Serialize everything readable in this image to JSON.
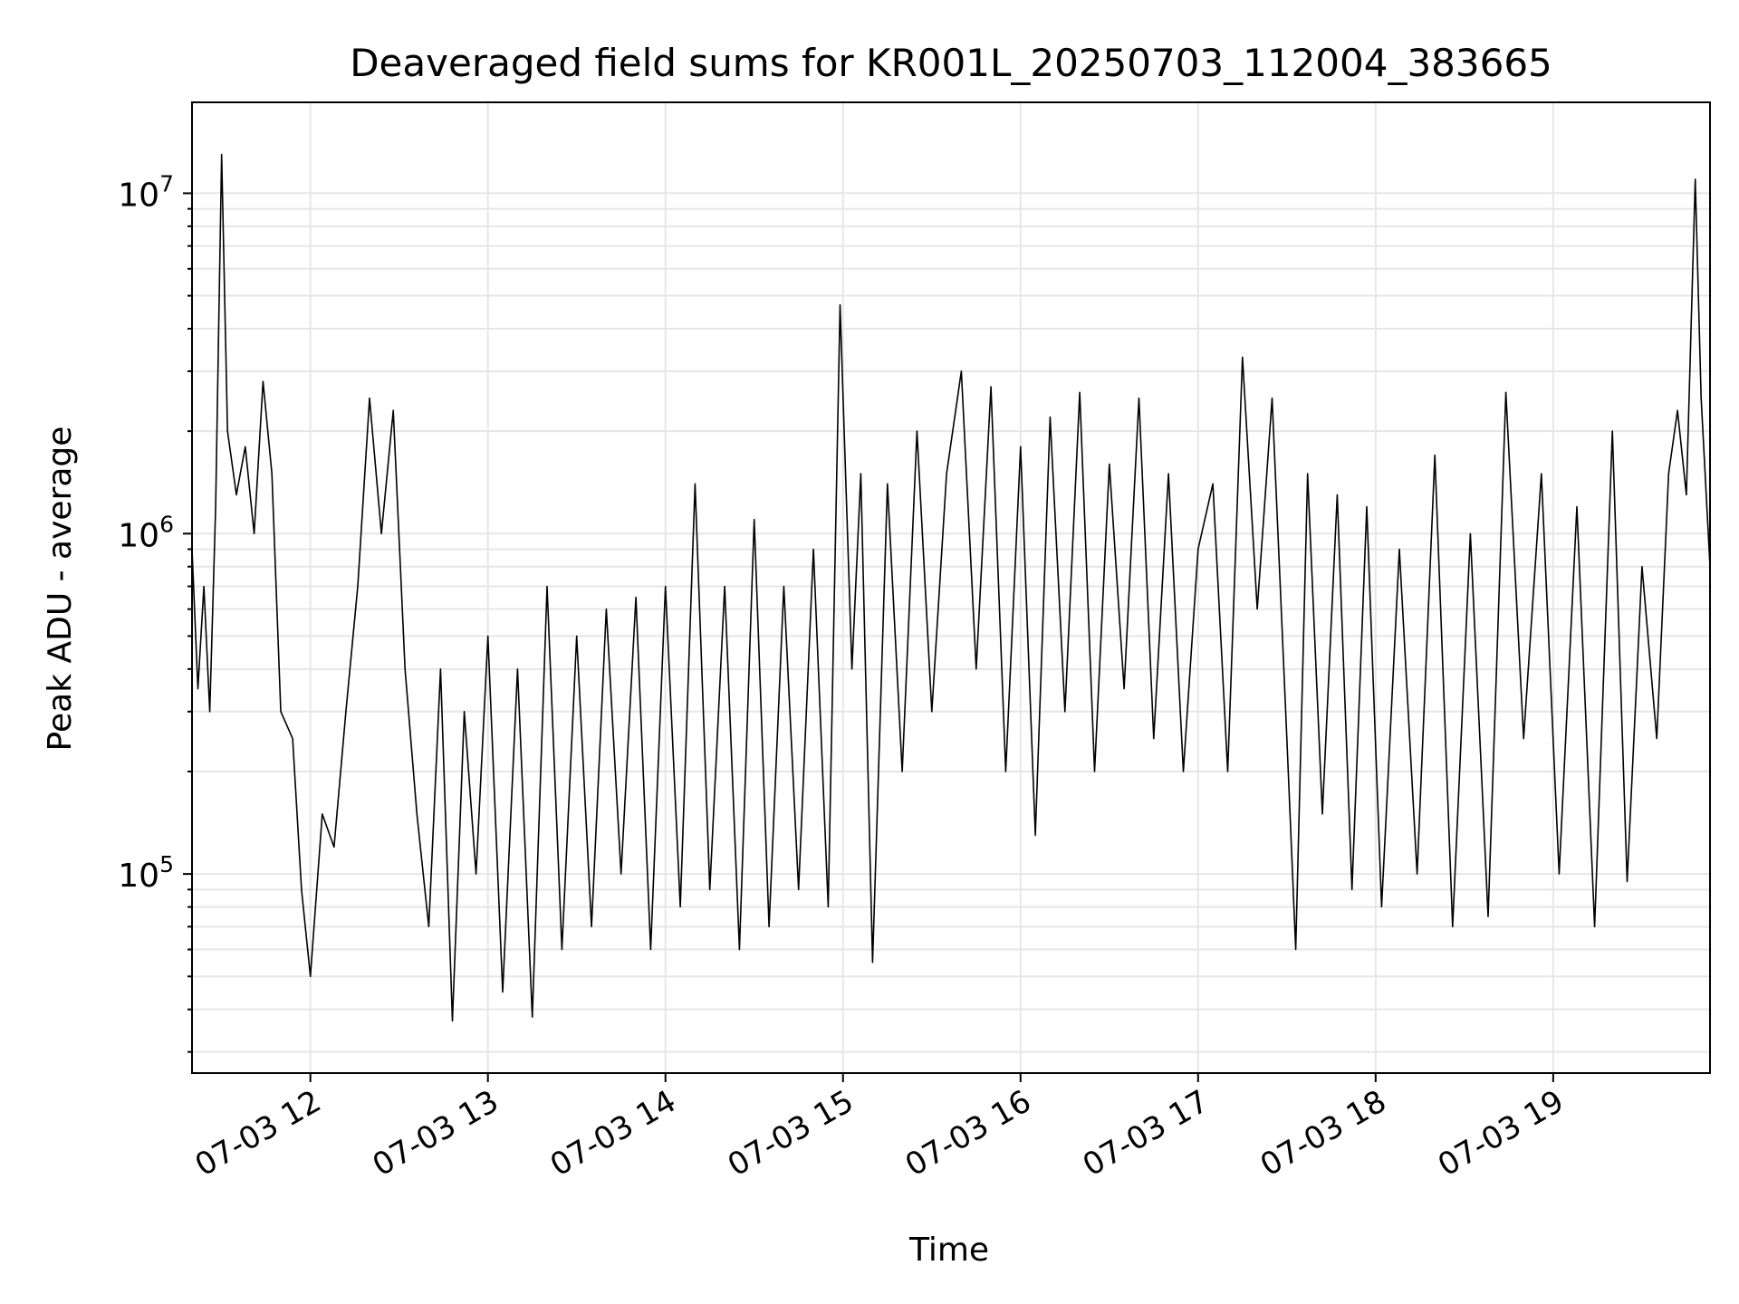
{
  "chart_data": {
    "type": "line",
    "title": "Deaveraged field sums for KR001L_20250703_112004_383665",
    "xlabel": "Time",
    "ylabel": "Peak ADU - average",
    "x_ticks": [
      "07-03 12",
      "07-03 13",
      "07-03 14",
      "07-03 15",
      "07-03 16",
      "07-03 17",
      "07-03 18",
      "07-03 19"
    ],
    "x_tick_times": [
      "2025-07-03T12:00",
      "2025-07-03T13:00",
      "2025-07-03T14:00",
      "2025-07-03T15:00",
      "2025-07-03T16:00",
      "2025-07-03T17:00",
      "2025-07-03T18:00",
      "2025-07-03T19:00"
    ],
    "xlim": [
      "2025-07-03T11:20",
      "2025-07-03T19:53"
    ],
    "y_scale": "log",
    "ylim": [
      26000,
      18500000
    ],
    "y_ticks": [
      {
        "base": "10",
        "exp": "5",
        "value": 100000
      },
      {
        "base": "10",
        "exp": "6",
        "value": 1000000
      },
      {
        "base": "10",
        "exp": "7",
        "value": 10000000
      }
    ],
    "grid": true,
    "line_color": "#000000",
    "series": [
      {
        "points": [
          [
            "2025-07-03T11:20",
            900000
          ],
          [
            "2025-07-03T11:22",
            350000
          ],
          [
            "2025-07-03T11:24",
            700000
          ],
          [
            "2025-07-03T11:26",
            300000
          ],
          [
            "2025-07-03T11:28",
            1200000
          ],
          [
            "2025-07-03T11:30",
            13000000
          ],
          [
            "2025-07-03T11:32",
            2000000
          ],
          [
            "2025-07-03T11:35",
            1300000
          ],
          [
            "2025-07-03T11:38",
            1800000
          ],
          [
            "2025-07-03T11:41",
            1000000
          ],
          [
            "2025-07-03T11:44",
            2800000
          ],
          [
            "2025-07-03T11:47",
            1500000
          ],
          [
            "2025-07-03T11:50",
            300000
          ],
          [
            "2025-07-03T11:54",
            250000
          ],
          [
            "2025-07-03T11:57",
            90000
          ],
          [
            "2025-07-03T12:00",
            50000
          ],
          [
            "2025-07-03T12:04",
            150000
          ],
          [
            "2025-07-03T12:08",
            120000
          ],
          [
            "2025-07-03T12:12",
            300000
          ],
          [
            "2025-07-03T12:16",
            700000
          ],
          [
            "2025-07-03T12:20",
            2500000
          ],
          [
            "2025-07-03T12:24",
            1000000
          ],
          [
            "2025-07-03T12:28",
            2300000
          ],
          [
            "2025-07-03T12:32",
            400000
          ],
          [
            "2025-07-03T12:36",
            150000
          ],
          [
            "2025-07-03T12:40",
            70000
          ],
          [
            "2025-07-03T12:44",
            400000
          ],
          [
            "2025-07-03T12:48",
            37000
          ],
          [
            "2025-07-03T12:52",
            300000
          ],
          [
            "2025-07-03T12:56",
            100000
          ],
          [
            "2025-07-03T13:00",
            500000
          ],
          [
            "2025-07-03T13:05",
            45000
          ],
          [
            "2025-07-03T13:10",
            400000
          ],
          [
            "2025-07-03T13:15",
            38000
          ],
          [
            "2025-07-03T13:20",
            700000
          ],
          [
            "2025-07-03T13:25",
            60000
          ],
          [
            "2025-07-03T13:30",
            500000
          ],
          [
            "2025-07-03T13:35",
            70000
          ],
          [
            "2025-07-03T13:40",
            600000
          ],
          [
            "2025-07-03T13:45",
            100000
          ],
          [
            "2025-07-03T13:50",
            650000
          ],
          [
            "2025-07-03T13:55",
            60000
          ],
          [
            "2025-07-03T14:00",
            700000
          ],
          [
            "2025-07-03T14:05",
            80000
          ],
          [
            "2025-07-03T14:10",
            1400000
          ],
          [
            "2025-07-03T14:15",
            90000
          ],
          [
            "2025-07-03T14:20",
            700000
          ],
          [
            "2025-07-03T14:25",
            60000
          ],
          [
            "2025-07-03T14:30",
            1100000
          ],
          [
            "2025-07-03T14:35",
            70000
          ],
          [
            "2025-07-03T14:40",
            700000
          ],
          [
            "2025-07-03T14:45",
            90000
          ],
          [
            "2025-07-03T14:50",
            900000
          ],
          [
            "2025-07-03T14:55",
            80000
          ],
          [
            "2025-07-03T14:59",
            4700000
          ],
          [
            "2025-07-03T15:03",
            400000
          ],
          [
            "2025-07-03T15:06",
            1500000
          ],
          [
            "2025-07-03T15:10",
            55000
          ],
          [
            "2025-07-03T15:15",
            1400000
          ],
          [
            "2025-07-03T15:20",
            200000
          ],
          [
            "2025-07-03T15:25",
            2000000
          ],
          [
            "2025-07-03T15:30",
            300000
          ],
          [
            "2025-07-03T15:35",
            1500000
          ],
          [
            "2025-07-03T15:40",
            3000000
          ],
          [
            "2025-07-03T15:45",
            400000
          ],
          [
            "2025-07-03T15:50",
            2700000
          ],
          [
            "2025-07-03T15:55",
            200000
          ],
          [
            "2025-07-03T16:00",
            1800000
          ],
          [
            "2025-07-03T16:05",
            130000
          ],
          [
            "2025-07-03T16:10",
            2200000
          ],
          [
            "2025-07-03T16:15",
            300000
          ],
          [
            "2025-07-03T16:20",
            2600000
          ],
          [
            "2025-07-03T16:25",
            200000
          ],
          [
            "2025-07-03T16:30",
            1600000
          ],
          [
            "2025-07-03T16:35",
            350000
          ],
          [
            "2025-07-03T16:40",
            2500000
          ],
          [
            "2025-07-03T16:45",
            250000
          ],
          [
            "2025-07-03T16:50",
            1500000
          ],
          [
            "2025-07-03T16:55",
            200000
          ],
          [
            "2025-07-03T17:00",
            900000
          ],
          [
            "2025-07-03T17:05",
            1400000
          ],
          [
            "2025-07-03T17:10",
            200000
          ],
          [
            "2025-07-03T17:15",
            3300000
          ],
          [
            "2025-07-03T17:20",
            600000
          ],
          [
            "2025-07-03T17:25",
            2500000
          ],
          [
            "2025-07-03T17:30",
            250000
          ],
          [
            "2025-07-03T17:33",
            60000
          ],
          [
            "2025-07-03T17:37",
            1500000
          ],
          [
            "2025-07-03T17:42",
            150000
          ],
          [
            "2025-07-03T17:47",
            1300000
          ],
          [
            "2025-07-03T17:52",
            90000
          ],
          [
            "2025-07-03T17:57",
            1200000
          ],
          [
            "2025-07-03T18:02",
            80000
          ],
          [
            "2025-07-03T18:08",
            900000
          ],
          [
            "2025-07-03T18:14",
            100000
          ],
          [
            "2025-07-03T18:20",
            1700000
          ],
          [
            "2025-07-03T18:26",
            70000
          ],
          [
            "2025-07-03T18:32",
            1000000
          ],
          [
            "2025-07-03T18:38",
            75000
          ],
          [
            "2025-07-03T18:44",
            2600000
          ],
          [
            "2025-07-03T18:50",
            250000
          ],
          [
            "2025-07-03T18:56",
            1500000
          ],
          [
            "2025-07-03T19:02",
            100000
          ],
          [
            "2025-07-03T19:08",
            1200000
          ],
          [
            "2025-07-03T19:14",
            70000
          ],
          [
            "2025-07-03T19:20",
            2000000
          ],
          [
            "2025-07-03T19:25",
            95000
          ],
          [
            "2025-07-03T19:30",
            800000
          ],
          [
            "2025-07-03T19:35",
            250000
          ],
          [
            "2025-07-03T19:39",
            1500000
          ],
          [
            "2025-07-03T19:42",
            2300000
          ],
          [
            "2025-07-03T19:45",
            1300000
          ],
          [
            "2025-07-03T19:48",
            11000000
          ],
          [
            "2025-07-03T19:50",
            2500000
          ],
          [
            "2025-07-03T19:53",
            800000
          ]
        ]
      }
    ]
  }
}
